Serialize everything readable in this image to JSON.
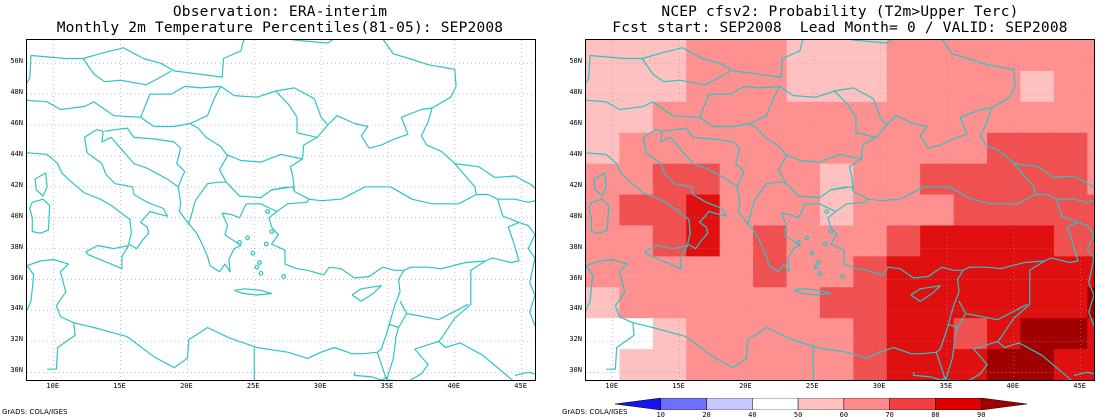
{
  "left_panel": {
    "title_line1": "Observation: ERA-interim",
    "title_line2": "Monthly 2m Temperature Percentiles(81-05): SEP2008",
    "credit": "GrADS: COLA/IGES"
  },
  "right_panel": {
    "title_line1": "NCEP cfsv2: Probability (T2m>Upper Terc)",
    "title_line2": "Fcst start: SEP2008  Lead Month= 0 / VALID: SEP2008",
    "credit": "GrADS: COLA/IGES"
  },
  "lat_labels": [
    "50N",
    "48N",
    "46N",
    "44N",
    "42N",
    "40N",
    "38N",
    "36N",
    "34N",
    "32N",
    "30N"
  ],
  "lon_labels": [
    "10E",
    "15E",
    "20E",
    "25E",
    "30E",
    "35E",
    "40E",
    "45E"
  ],
  "colorbar": {
    "labels": [
      "10",
      "20",
      "40",
      "50",
      "60",
      "70",
      "80",
      "90"
    ],
    "colors": [
      "#1414f0",
      "#6e6eff",
      "#c8c8ff",
      "#ffffff",
      "#ffc0c0",
      "#ff8c8c",
      "#f04040",
      "#e00000",
      "#a00000"
    ]
  },
  "colors": {
    "coast": "#2ec4c4",
    "grid": "#9a9a9a"
  }
}
